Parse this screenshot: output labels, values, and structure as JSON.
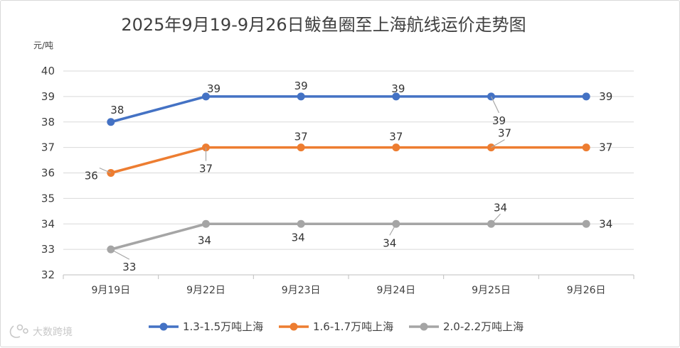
{
  "watermark": "大数跨境",
  "chart_data": {
    "type": "line",
    "title": "2025年9月19-9月26日鲅鱼圈至上海航线运价走势图",
    "unit_label": "元/吨",
    "xlabel": "",
    "ylabel": "",
    "ylim": [
      32,
      40
    ],
    "y_ticks": [
      32,
      33,
      34,
      35,
      36,
      37,
      38,
      39,
      40
    ],
    "grid": true,
    "legend_position": "bottom",
    "categories": [
      "9月19日",
      "9月22日",
      "9月23日",
      "9月24日",
      "9月25日",
      "9月26日"
    ],
    "series": [
      {
        "name": "1.3-1.5万吨上海",
        "color": "#4472c4",
        "values": [
          38,
          39,
          39,
          39,
          39,
          39
        ]
      },
      {
        "name": "1.6-1.7万吨上海",
        "color": "#ed7d31",
        "values": [
          36,
          37,
          37,
          37,
          37,
          37
        ]
      },
      {
        "name": "2.0-2.2万吨上海",
        "color": "#a5a5a5",
        "values": [
          33,
          34,
          34,
          34,
          34,
          34
        ]
      }
    ]
  }
}
